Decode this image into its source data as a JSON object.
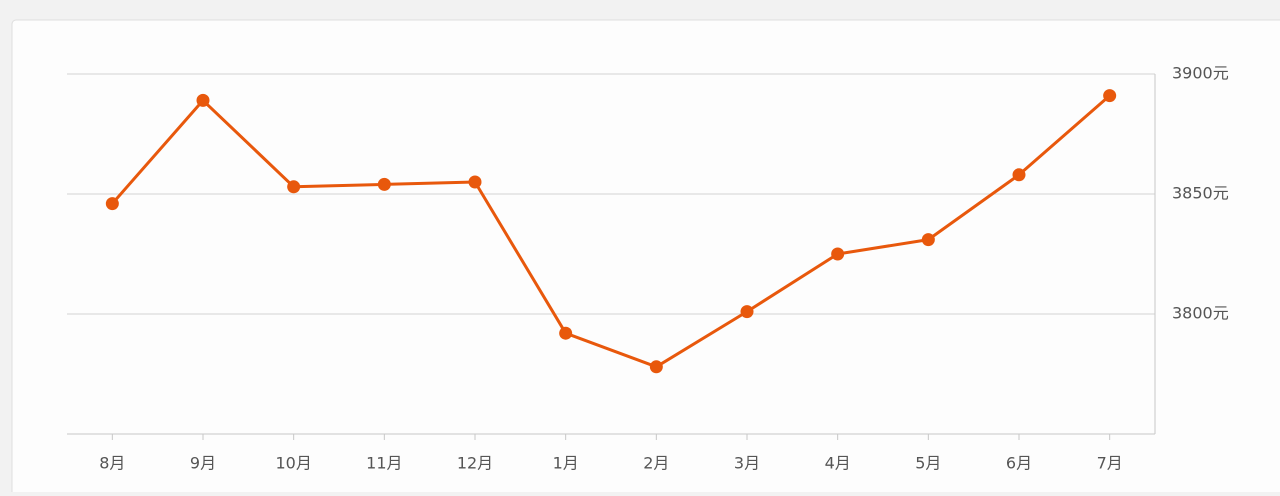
{
  "chart_data": {
    "type": "line",
    "categories": [
      "8月",
      "9月",
      "10月",
      "11月",
      "12月",
      "1月",
      "2月",
      "3月",
      "4月",
      "5月",
      "6月",
      "7月"
    ],
    "series": [
      {
        "name": null,
        "color": "#e8580c",
        "values": [
          3846,
          3889,
          3853,
          3854,
          3855,
          3792,
          3778,
          3801,
          3825,
          3831,
          3858,
          3891
        ]
      }
    ],
    "ylim": [
      3750,
      3900
    ],
    "yticks": [
      {
        "value": 3800,
        "label": "3800元"
      },
      {
        "value": 3850,
        "label": "3850元"
      },
      {
        "value": 3900,
        "label": "3900元"
      }
    ],
    "grid": true
  }
}
